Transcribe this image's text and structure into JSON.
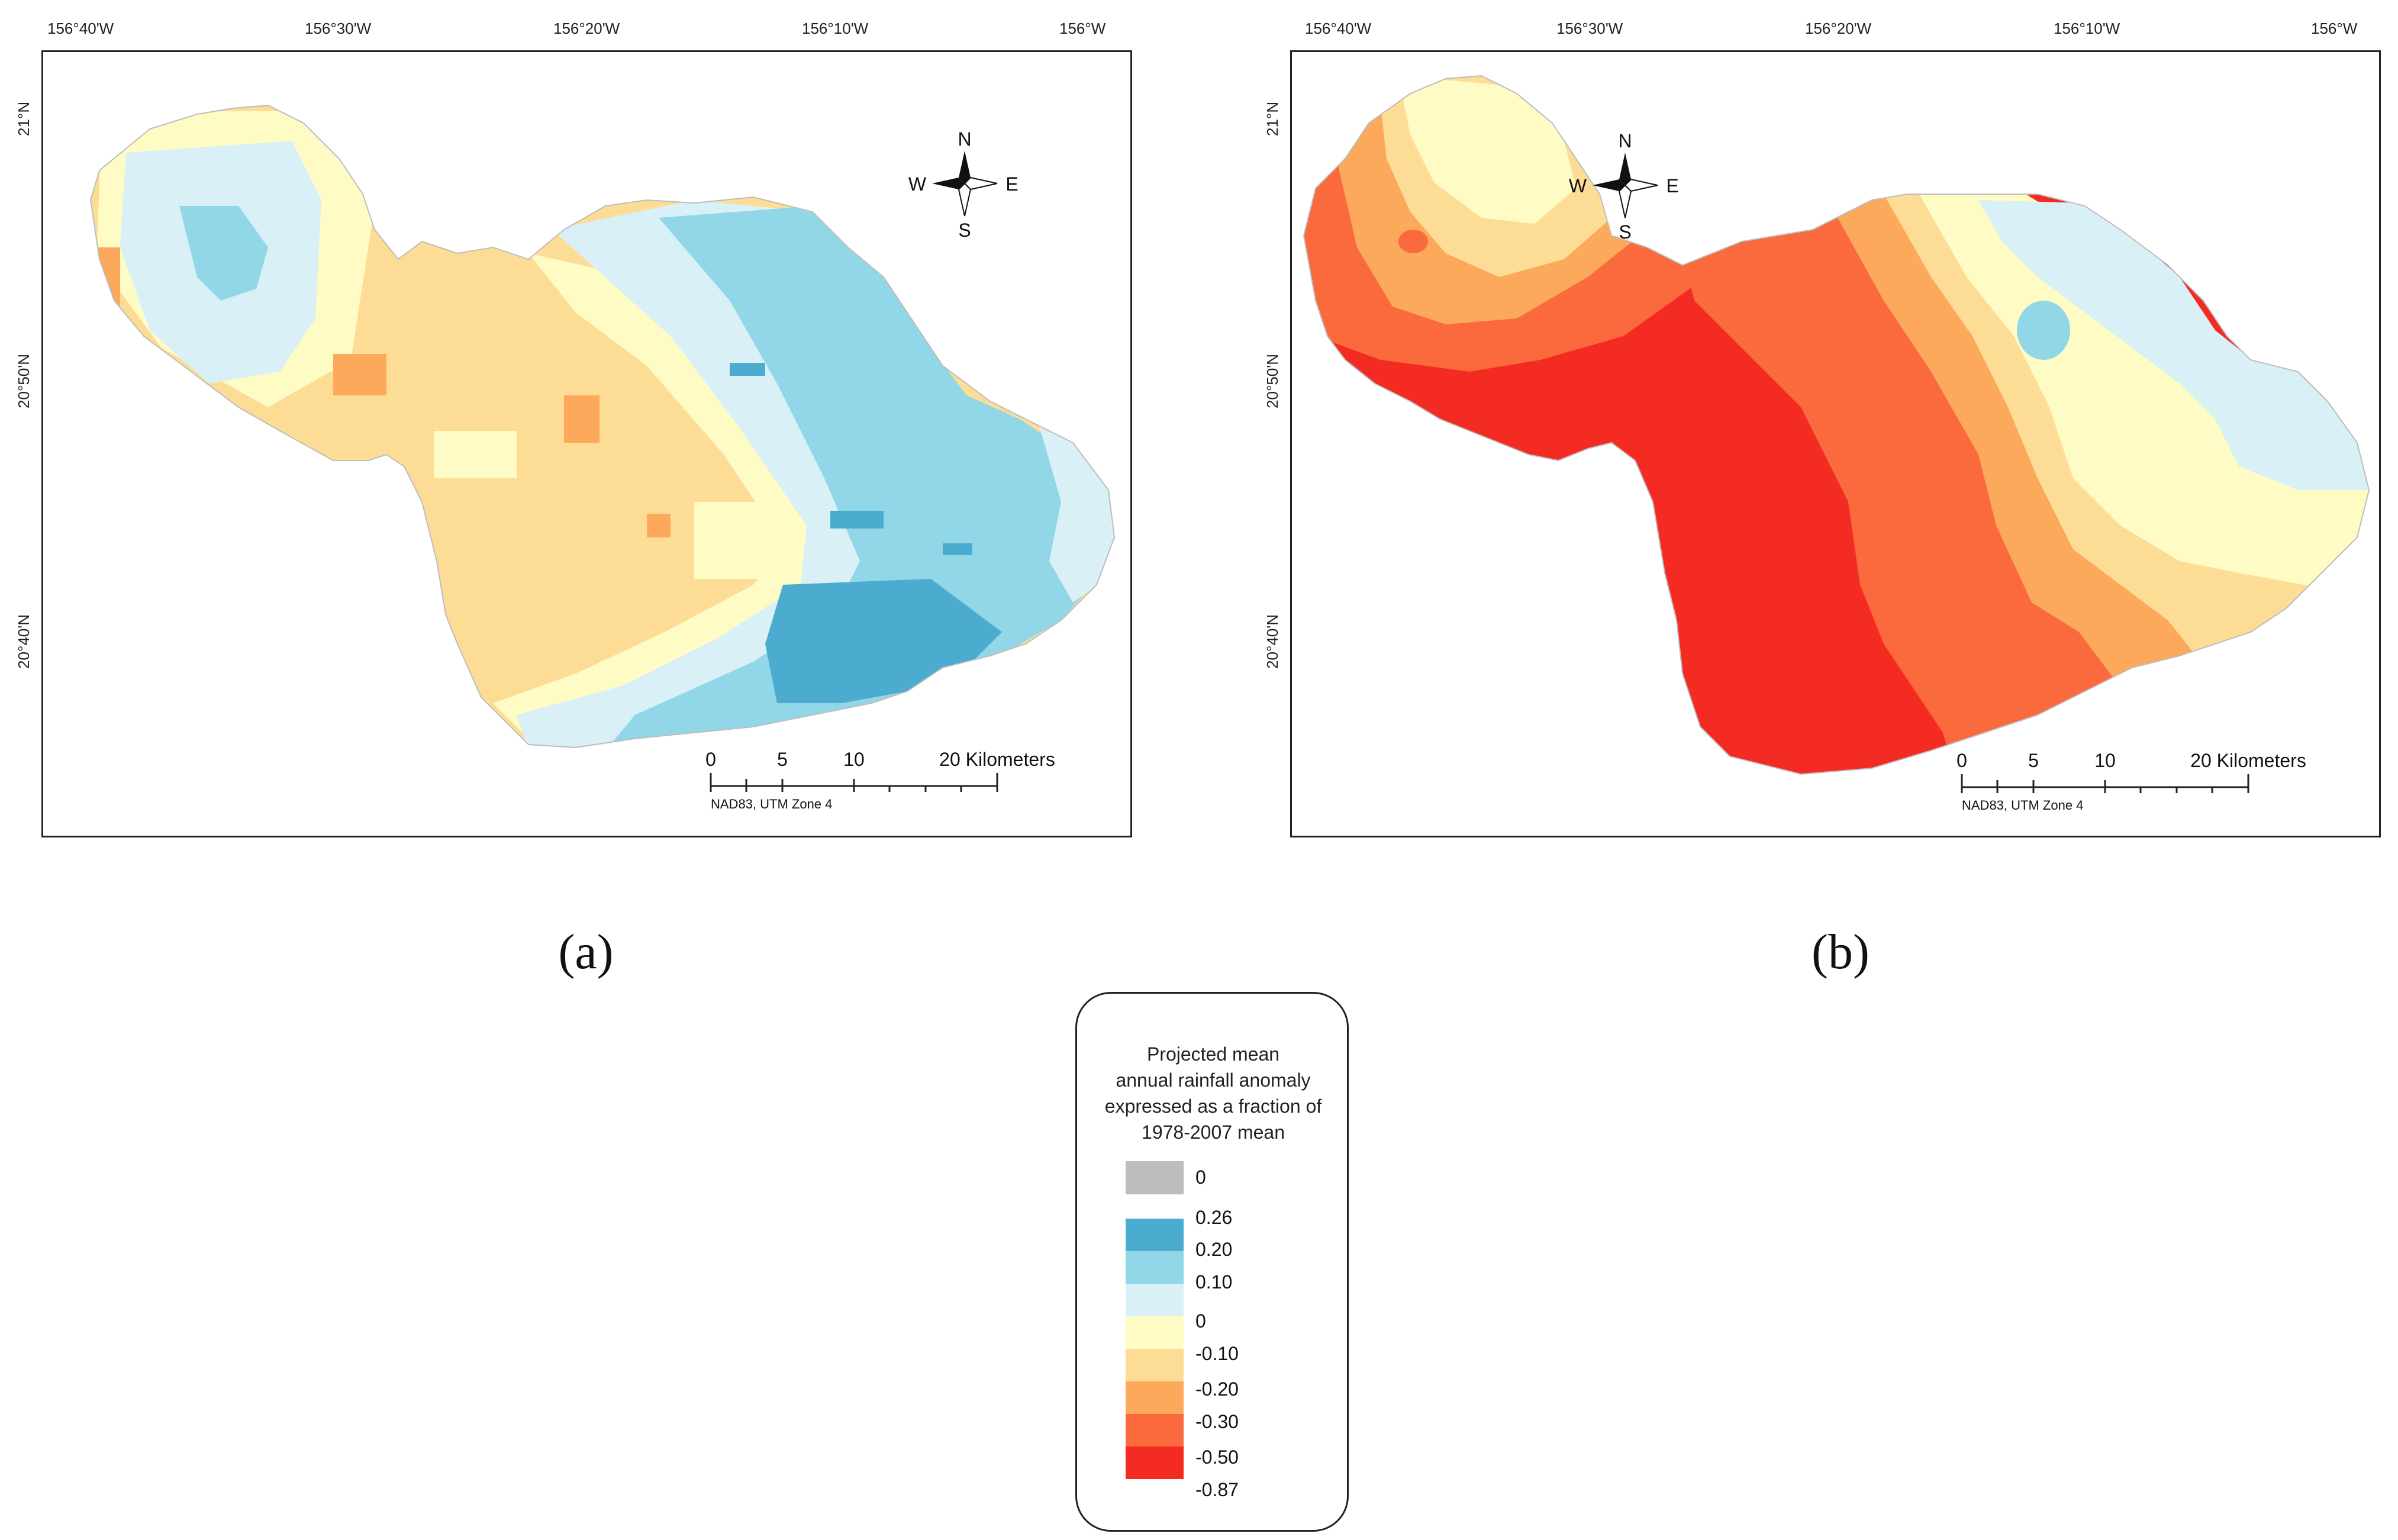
{
  "panels": [
    {
      "id": "a",
      "caption": "(a)",
      "lon_labels": [
        "156°40'W",
        "156°30'W",
        "156°20'W",
        "156°10'W",
        "156°W"
      ],
      "lat_labels": [
        "21°N",
        "20°50'N",
        "20°40'N"
      ],
      "compass": {
        "n": "N",
        "s": "S",
        "e": "E",
        "w": "W"
      },
      "scale": {
        "ticks": [
          "0",
          "5",
          "10"
        ],
        "end_label": "20 Kilometers",
        "datum": "NAD83, UTM Zone 4"
      }
    },
    {
      "id": "b",
      "caption": "(b)",
      "lon_labels": [
        "156°40'W",
        "156°30'W",
        "156°20'W",
        "156°10'W",
        "156°W"
      ],
      "lat_labels": [
        "21°N",
        "20°50'N",
        "20°40'N"
      ],
      "compass": {
        "n": "N",
        "s": "S",
        "e": "E",
        "w": "W"
      },
      "scale": {
        "ticks": [
          "0",
          "5",
          "10"
        ],
        "end_label": "20 Kilometers",
        "datum": "NAD83, UTM Zone 4"
      }
    }
  ],
  "legend": {
    "title_lines": [
      "Projected mean",
      "annual rainfall anomaly",
      "expressed as a fraction of",
      "1978-2007 mean"
    ],
    "nodata": {
      "color": "#bdbdbd",
      "label": "0"
    },
    "values": [
      "0.26",
      "0.20",
      "0.10",
      "0",
      "-0.10",
      "-0.20",
      "-0.30",
      "-0.50",
      "-0.87"
    ],
    "colors": [
      "#4bacd0",
      "#92d7e8",
      "#d8f0f6",
      "#fefcc4",
      "#fddd96",
      "#fca95c",
      "#fb6a3d",
      "#f32b22"
    ]
  }
}
